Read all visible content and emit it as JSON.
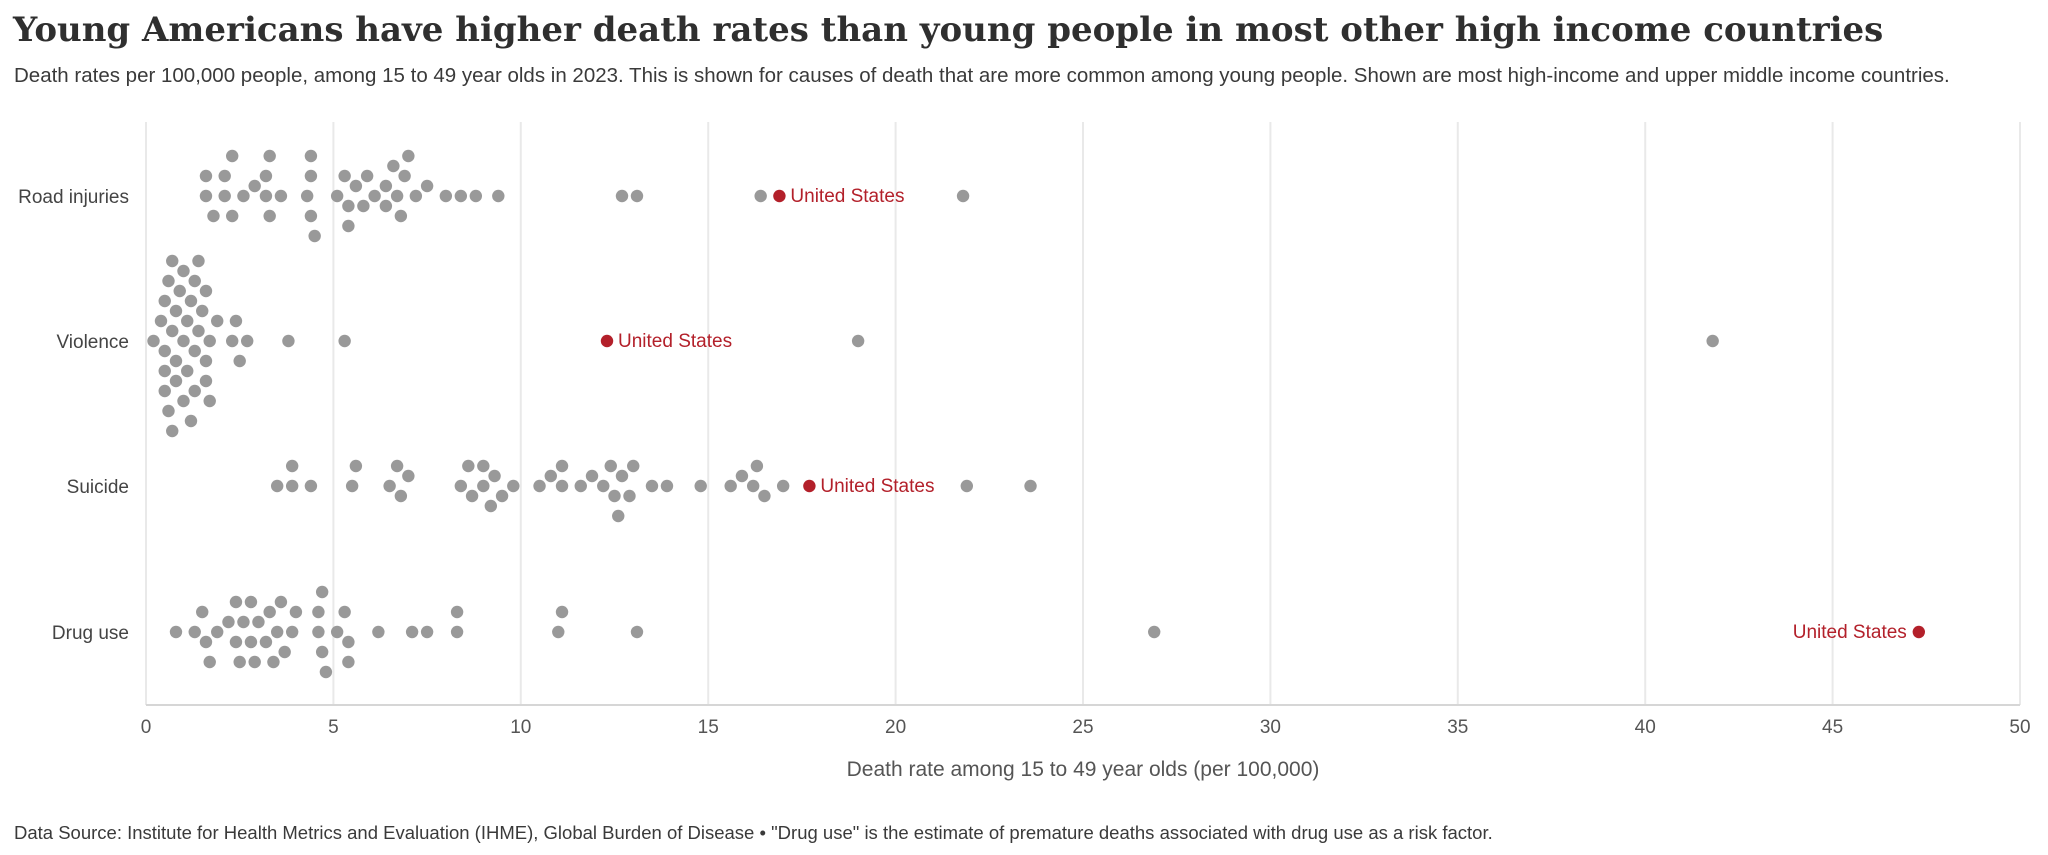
{
  "title": "Young Americans have higher death rates than young people in most other high income countries",
  "subtitle": "Death rates per 100,000 people, among 15 to 49 year olds in 2023. This is shown for causes of death that are more common among young people. Shown are most high-income and upper middle income countries.",
  "footer": "Data Source: Institute for Health Metrics and Evaluation (IHME), Global Burden of Disease • \"Drug use\" is the estimate of premature deaths associated with drug use as a risk factor.",
  "colors": {
    "point": "#999999",
    "highlight": "#b3202a",
    "grid": "#e9e9e9",
    "axis": "#d6d6d6"
  },
  "chart_data": {
    "type": "scatter",
    "xlabel": "Death rate among 15 to 49 year olds (per 100,000)",
    "xlim": [
      0,
      50
    ],
    "xticks": [
      0,
      5,
      10,
      15,
      20,
      25,
      30,
      35,
      40,
      45,
      50
    ],
    "categories": [
      "Road injuries",
      "Violence",
      "Suicide",
      "Drug use"
    ],
    "highlight_label": "United States",
    "series": [
      {
        "category": "Road injuries",
        "values": [
          1.6,
          1.6,
          1.8,
          2.1,
          2.1,
          2.3,
          2.3,
          2.6,
          2.9,
          3.2,
          3.2,
          3.3,
          3.3,
          3.6,
          4.3,
          4.4,
          4.4,
          4.4,
          4.5,
          5.1,
          5.3,
          5.4,
          5.4,
          5.6,
          5.8,
          5.9,
          6.1,
          6.4,
          6.4,
          6.6,
          6.7,
          6.8,
          6.9,
          7.0,
          7.2,
          7.5,
          8.0,
          8.4,
          8.8,
          9.4,
          12.7,
          13.1,
          16.4,
          21.8
        ],
        "highlight_value": 16.9
      },
      {
        "category": "Violence",
        "values": [
          0.2,
          0.4,
          0.5,
          0.5,
          0.5,
          0.5,
          0.6,
          0.6,
          0.7,
          0.7,
          0.7,
          0.8,
          0.8,
          0.8,
          0.9,
          1.0,
          1.0,
          1.0,
          1.1,
          1.1,
          1.2,
          1.2,
          1.3,
          1.3,
          1.3,
          1.4,
          1.4,
          1.5,
          1.6,
          1.6,
          1.6,
          1.7,
          1.7,
          1.9,
          2.3,
          2.4,
          2.5,
          2.7,
          3.8,
          5.3,
          19.0,
          41.8
        ],
        "highlight_value": 12.3
      },
      {
        "category": "Suicide",
        "values": [
          3.5,
          3.9,
          3.9,
          4.4,
          5.5,
          5.6,
          6.5,
          6.7,
          6.8,
          7.0,
          8.4,
          8.6,
          8.7,
          9.0,
          9.0,
          9.2,
          9.3,
          9.5,
          9.8,
          10.5,
          10.8,
          11.1,
          11.1,
          11.6,
          11.9,
          12.2,
          12.4,
          12.5,
          12.6,
          12.7,
          12.9,
          13.0,
          13.5,
          13.9,
          14.8,
          15.6,
          15.9,
          16.2,
          16.3,
          16.5,
          17.0,
          21.9,
          23.6
        ],
        "highlight_value": 17.7
      },
      {
        "category": "Drug use",
        "values": [
          0.8,
          1.3,
          1.5,
          1.6,
          1.7,
          1.9,
          2.2,
          2.4,
          2.4,
          2.5,
          2.6,
          2.8,
          2.8,
          2.9,
          3.0,
          3.2,
          3.3,
          3.4,
          3.5,
          3.6,
          3.7,
          3.9,
          4.0,
          4.6,
          4.6,
          4.7,
          4.7,
          4.8,
          5.1,
          5.3,
          5.4,
          5.4,
          6.2,
          7.1,
          7.5,
          8.3,
          8.3,
          11.0,
          11.1,
          13.1,
          26.9
        ],
        "highlight_value": 47.3
      }
    ]
  }
}
